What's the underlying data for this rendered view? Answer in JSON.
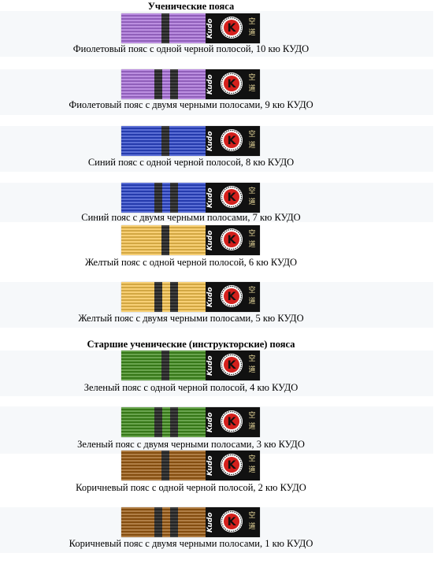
{
  "headings": {
    "student": "Ученические пояса",
    "senior": "Старшие ученические (инструкторские) пояса"
  },
  "belts": [
    {
      "caption": "Фиолетовый пояс с одной черной полосой, 10 кю КУДО",
      "color": "#a86fd8",
      "stripes": 1
    },
    {
      "caption": "Фиолетовый пояс с двумя черными полосами, 9 кю КУДО",
      "color": "#a86fd8",
      "stripes": 2
    },
    {
      "caption": "Синий пояс с одной черной полосой, 8 кю КУДО",
      "color": "#2b45c9",
      "stripes": 1
    },
    {
      "caption": "Синий пояс с двумя черными полосами, 7 кю КУДО",
      "color": "#2b45c9",
      "stripes": 2
    },
    {
      "caption": "Желтый пояс с одной черной полосой, 6 кю КУДО",
      "color": "#f5c24e",
      "stripes": 1
    },
    {
      "caption": "Желтый пояс с двумя черными полосами, 5 кю КУДО",
      "color": "#f5c24e",
      "stripes": 2
    },
    {
      "caption": "Зеленый пояс с одной черной полосой, 4 кю КУДО",
      "color": "#3f8a1c",
      "stripes": 1
    },
    {
      "caption": "Зеленый пояс с двумя черными полосами, 3 кю КУДО",
      "color": "#3f8a1c",
      "stripes": 2
    },
    {
      "caption": "Коричневый пояс с одной черной полосой, 2 кю КУДО",
      "color": "#9a5a12",
      "stripes": 1
    },
    {
      "caption": "Коричневый пояс с двумя черными полосами, 1 кю КУДО",
      "color": "#9a5a12",
      "stripes": 2
    }
  ],
  "logo": {
    "brand_text": "Kudo",
    "kanji_text": "空道",
    "emblem_letter": "K",
    "emblem_color": "#d4201c"
  }
}
